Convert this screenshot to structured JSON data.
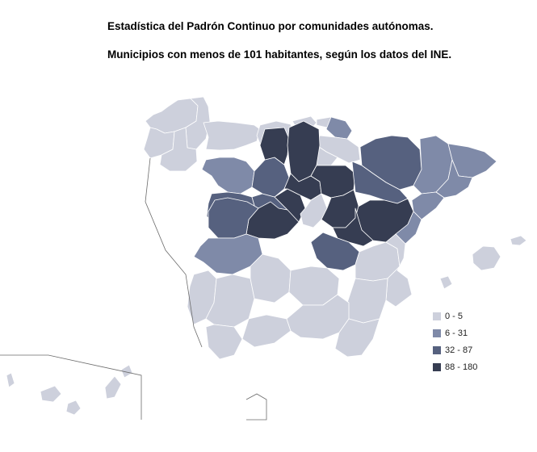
{
  "title_line1": "Estadística del Padrón Continuo por comunidades autónomas.",
  "title_line2": "Municipios con menos de 101 habitantes, según los datos del INE.",
  "colors": {
    "class_0_5": "#cdd0dc",
    "class_6_31": "#7f8aa8",
    "class_32_87": "#56617f",
    "class_88_180": "#363d52",
    "background": "#ffffff"
  },
  "legend": {
    "items": [
      {
        "label": "0 - 5",
        "color_key": "class_0_5"
      },
      {
        "label": "6 - 31",
        "color_key": "class_6_31"
      },
      {
        "label": "32 - 87",
        "color_key": "class_32_87"
      },
      {
        "label": "88 - 180",
        "color_key": "class_88_180"
      }
    ]
  }
}
